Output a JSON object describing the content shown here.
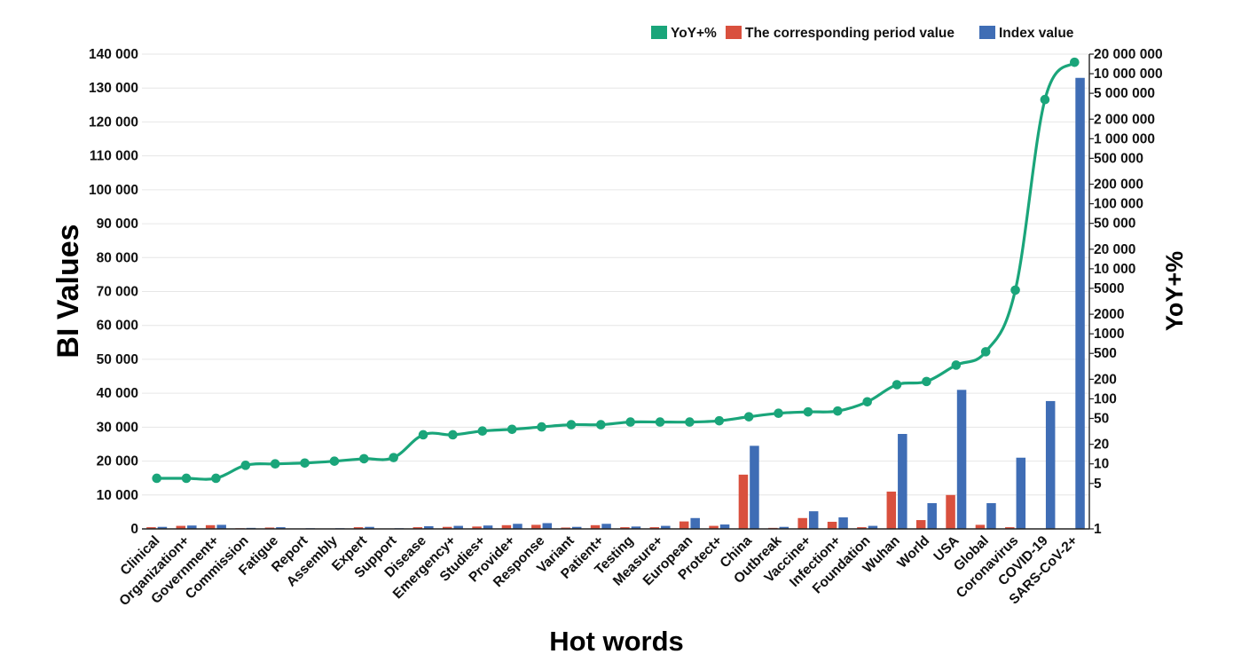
{
  "colors": {
    "yoy": "#1aa57a",
    "corresponding": "#d9503e",
    "index": "#3f6db5"
  },
  "chart_data": {
    "type": "bar",
    "xlabel": "Hot words",
    "ylabel": "BI Values",
    "y2label": "YoY+%",
    "ylim": [
      0,
      140000
    ],
    "yticks": [
      "0",
      "10 000",
      "20 000",
      "30 000",
      "40 000",
      "50 000",
      "60 000",
      "70 000",
      "80 000",
      "90 000",
      "100 000",
      "110 000",
      "120 000",
      "130 000",
      "140 000"
    ],
    "y2scale": "log",
    "y2lim": [
      1,
      20000000
    ],
    "y2ticks": [
      {
        "value": 1,
        "label": "1"
      },
      {
        "value": 5,
        "label": "5"
      },
      {
        "value": 10,
        "label": "10"
      },
      {
        "value": 20,
        "label": "20"
      },
      {
        "value": 50,
        "label": "50"
      },
      {
        "value": 100,
        "label": "100"
      },
      {
        "value": 200,
        "label": "200"
      },
      {
        "value": 500,
        "label": "500"
      },
      {
        "value": 1000,
        "label": "1000"
      },
      {
        "value": 2000,
        "label": "2000"
      },
      {
        "value": 5000,
        "label": "5000"
      },
      {
        "value": 10000,
        "label": "10 000"
      },
      {
        "value": 20000,
        "label": "20 000"
      },
      {
        "value": 50000,
        "label": "50 000"
      },
      {
        "value": 100000,
        "label": "100 000"
      },
      {
        "value": 200000,
        "label": "200 000"
      },
      {
        "value": 500000,
        "label": "500 000"
      },
      {
        "value": 1000000,
        "label": "1 000 000"
      },
      {
        "value": 2000000,
        "label": "2 000 000"
      },
      {
        "value": 5000000,
        "label": "5 000 000"
      },
      {
        "value": 10000000,
        "label": "10 000 000"
      },
      {
        "value": 20000000,
        "label": "20 000 000"
      }
    ],
    "grid": true,
    "legend_position": "top-right",
    "legend": [
      "YoY+%",
      "The corresponding period value",
      "Index value"
    ],
    "categories": [
      "Clinical",
      "Organization+",
      "Government+",
      "Commission",
      "Fatigue",
      "Report",
      "Assembly",
      "Expert",
      "Support",
      "Disease",
      "Emergency+",
      "Studies+",
      "Provide+",
      "Response",
      "Variant",
      "Patient+",
      "Testing",
      "Measure+",
      "European",
      "Protect+",
      "China",
      "Outbreak",
      "Vaccine+",
      "Infection+",
      "Foundation",
      "Wuhan",
      "World",
      "USA",
      "Global",
      "Coronavirus",
      "COVID-19",
      "SARS-CoV-2+"
    ],
    "series": [
      {
        "name": "The corresponding period value",
        "type": "bar",
        "axis": "left",
        "values": [
          500,
          900,
          1100,
          200,
          400,
          100,
          100,
          500,
          100,
          500,
          600,
          700,
          1100,
          1200,
          400,
          1100,
          500,
          500,
          2200,
          900,
          16000,
          300,
          3200,
          2100,
          500,
          11000,
          2600,
          10000,
          1200,
          500,
          0,
          0
        ]
      },
      {
        "name": "Index value",
        "type": "bar",
        "axis": "left",
        "values": [
          600,
          1000,
          1200,
          300,
          500,
          200,
          200,
          600,
          200,
          800,
          900,
          1000,
          1500,
          1700,
          600,
          1500,
          700,
          900,
          3200,
          1300,
          24500,
          600,
          5200,
          3400,
          900,
          28000,
          7600,
          41000,
          7600,
          21000,
          37700,
          133000
        ]
      },
      {
        "name": "YoY+%",
        "type": "line",
        "axis": "right",
        "values": [
          6,
          6,
          6,
          9.5,
          10,
          10.3,
          11,
          12,
          12.5,
          28,
          28,
          32,
          34,
          37,
          40,
          40,
          44,
          44,
          44,
          46,
          53,
          60,
          63,
          65,
          90,
          165,
          185,
          330,
          530,
          4700,
          4000000,
          15000000
        ]
      }
    ]
  }
}
